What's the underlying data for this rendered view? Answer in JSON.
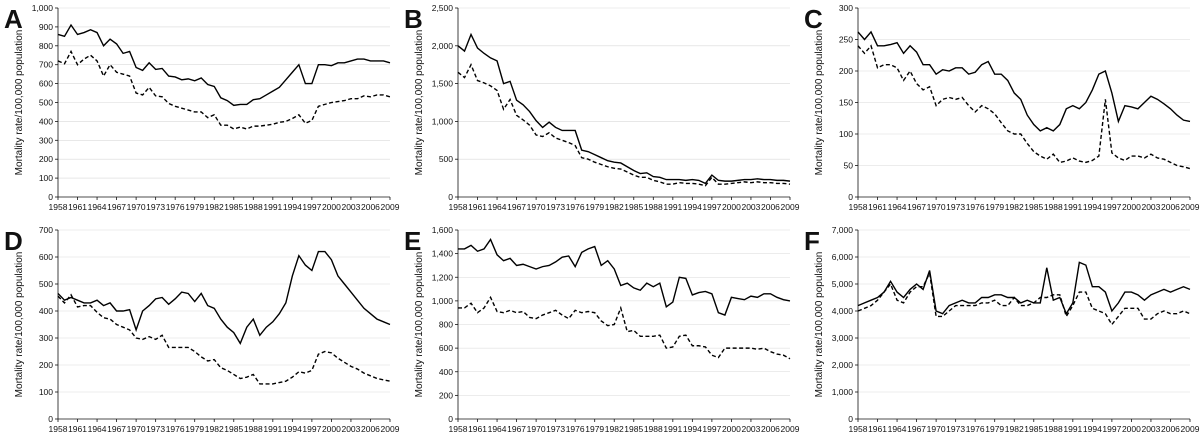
{
  "chart_data": [
    {
      "type": "line",
      "panel": "A",
      "ylabel": "Mortality rate/100,000 population",
      "ylim": [
        0,
        1000
      ],
      "yticks": [
        0,
        100,
        200,
        300,
        400,
        500,
        600,
        700,
        800,
        900,
        1000
      ],
      "ytick_labels": [
        "0",
        "100",
        "200",
        "300",
        "400",
        "500",
        "600",
        "700",
        "800",
        "900",
        "1,000"
      ],
      "xlim": [
        1958,
        2009
      ],
      "xticks": [
        1958,
        1961,
        1964,
        1967,
        1970,
        1973,
        1976,
        1979,
        1982,
        1985,
        1988,
        1991,
        1994,
        1997,
        2000,
        2003,
        2006,
        2009
      ],
      "grid": true,
      "series": [
        {
          "style": "solid",
          "values": [
            860,
            850,
            910,
            860,
            870,
            885,
            870,
            800,
            835,
            810,
            760,
            770,
            685,
            670,
            710,
            675,
            680,
            640,
            635,
            620,
            625,
            615,
            630,
            595,
            585,
            525,
            510,
            485,
            490,
            490,
            515,
            520,
            540,
            560,
            580,
            620,
            660,
            700,
            600,
            600,
            700,
            700,
            695,
            710,
            710,
            720,
            730,
            730,
            720,
            720,
            720,
            710
          ]
        },
        {
          "style": "dashed",
          "values": [
            720,
            705,
            770,
            700,
            730,
            750,
            720,
            640,
            700,
            660,
            650,
            640,
            550,
            540,
            580,
            535,
            530,
            495,
            480,
            470,
            460,
            450,
            450,
            420,
            435,
            380,
            380,
            360,
            370,
            360,
            375,
            375,
            380,
            385,
            395,
            400,
            415,
            435,
            390,
            405,
            480,
            490,
            500,
            505,
            510,
            520,
            520,
            535,
            530,
            540,
            540,
            530
          ]
        }
      ]
    },
    {
      "type": "line",
      "panel": "B",
      "ylabel": "Mortality rate/100,000 population",
      "ylim": [
        0,
        2500
      ],
      "yticks": [
        0,
        500,
        1000,
        1500,
        2000,
        2500
      ],
      "ytick_labels": [
        "0",
        "500",
        "1,000",
        "1,500",
        "2,000",
        "2,500"
      ],
      "xlim": [
        1958,
        2009
      ],
      "xticks": [
        1958,
        1961,
        1964,
        1967,
        1970,
        1973,
        1976,
        1979,
        1982,
        1985,
        1988,
        1991,
        1994,
        1997,
        2000,
        2003,
        2006,
        2009
      ],
      "grid": true,
      "series": [
        {
          "style": "solid",
          "values": [
            2000,
            1930,
            2150,
            1970,
            1900,
            1840,
            1800,
            1500,
            1530,
            1280,
            1220,
            1130,
            1010,
            920,
            990,
            920,
            880,
            880,
            880,
            620,
            600,
            560,
            520,
            480,
            460,
            450,
            400,
            350,
            310,
            320,
            270,
            260,
            230,
            230,
            230,
            220,
            230,
            220,
            180,
            290,
            220,
            210,
            210,
            220,
            230,
            230,
            240,
            230,
            230,
            220,
            220,
            210
          ]
        },
        {
          "style": "dashed",
          "values": [
            1650,
            1580,
            1750,
            1540,
            1510,
            1470,
            1410,
            1160,
            1290,
            1080,
            1020,
            950,
            820,
            800,
            850,
            780,
            750,
            720,
            680,
            520,
            500,
            460,
            430,
            400,
            380,
            370,
            330,
            290,
            260,
            260,
            220,
            200,
            170,
            170,
            190,
            180,
            180,
            170,
            150,
            260,
            170,
            170,
            180,
            190,
            200,
            190,
            200,
            190,
            190,
            180,
            180,
            170
          ]
        }
      ]
    },
    {
      "type": "line",
      "panel": "C",
      "ylabel": "Mortality rate/100,000 population",
      "ylim": [
        0,
        300
      ],
      "yticks": [
        0,
        50,
        100,
        150,
        200,
        250,
        300
      ],
      "ytick_labels": [
        "0",
        "50",
        "100",
        "150",
        "200",
        "250",
        "300"
      ],
      "xlim": [
        1958,
        2009
      ],
      "xticks": [
        1958,
        1961,
        1964,
        1967,
        1970,
        1973,
        1976,
        1979,
        1982,
        1985,
        1988,
        1991,
        1994,
        1997,
        2000,
        2003,
        2006,
        2009
      ],
      "grid": true,
      "series": [
        {
          "style": "solid",
          "values": [
            262,
            250,
            262,
            240,
            240,
            242,
            245,
            228,
            240,
            230,
            210,
            210,
            195,
            202,
            200,
            205,
            205,
            195,
            198,
            210,
            215,
            195,
            195,
            185,
            165,
            155,
            130,
            115,
            105,
            110,
            105,
            115,
            140,
            145,
            140,
            150,
            170,
            195,
            200,
            165,
            120,
            145,
            143,
            140,
            150,
            160,
            155,
            148,
            140,
            130,
            122,
            120
          ]
        },
        {
          "style": "dashed",
          "values": [
            240,
            228,
            240,
            205,
            210,
            210,
            205,
            185,
            200,
            180,
            170,
            175,
            145,
            155,
            158,
            155,
            158,
            145,
            135,
            145,
            140,
            132,
            118,
            105,
            100,
            100,
            85,
            72,
            65,
            60,
            68,
            55,
            57,
            62,
            57,
            55,
            58,
            65,
            155,
            70,
            62,
            58,
            65,
            65,
            62,
            68,
            62,
            60,
            55,
            50,
            48,
            45
          ]
        }
      ]
    },
    {
      "type": "line",
      "panel": "D",
      "ylabel": "Mortality rate/100,000 population",
      "ylim": [
        0,
        700
      ],
      "yticks": [
        0,
        100,
        200,
        300,
        400,
        500,
        600,
        700
      ],
      "ytick_labels": [
        "0",
        "100",
        "200",
        "300",
        "400",
        "500",
        "600",
        "700"
      ],
      "xlim": [
        1958,
        2009
      ],
      "xticks": [
        1958,
        1961,
        1964,
        1967,
        1970,
        1973,
        1976,
        1979,
        1982,
        1985,
        1988,
        1991,
        1994,
        1997,
        2000,
        2003,
        2006,
        2009
      ],
      "grid": true,
      "series": [
        {
          "style": "solid",
          "values": [
            465,
            440,
            450,
            440,
            430,
            430,
            440,
            420,
            430,
            400,
            400,
            405,
            330,
            400,
            420,
            445,
            450,
            425,
            445,
            470,
            465,
            435,
            465,
            420,
            410,
            370,
            340,
            320,
            280,
            340,
            370,
            310,
            340,
            360,
            390,
            430,
            530,
            605,
            570,
            550,
            620,
            620,
            590,
            530,
            500,
            470,
            440,
            410,
            390,
            370,
            360,
            350
          ]
        },
        {
          "style": "dashed",
          "values": [
            455,
            430,
            460,
            415,
            420,
            420,
            395,
            375,
            370,
            350,
            340,
            330,
            300,
            295,
            305,
            295,
            310,
            265,
            265,
            265,
            265,
            250,
            230,
            215,
            220,
            190,
            180,
            165,
            150,
            155,
            165,
            130,
            130,
            130,
            135,
            140,
            155,
            175,
            170,
            180,
            240,
            250,
            245,
            225,
            210,
            195,
            185,
            170,
            160,
            150,
            145,
            140
          ]
        }
      ]
    },
    {
      "type": "line",
      "panel": "E",
      "ylabel": "Mortality rate/100,000 population",
      "ylim": [
        0,
        1600
      ],
      "yticks": [
        0,
        200,
        400,
        600,
        800,
        1000,
        1200,
        1400,
        1600
      ],
      "ytick_labels": [
        "0",
        "200",
        "400",
        "600",
        "800",
        "1,000",
        "1,200",
        "1,400",
        "1,600"
      ],
      "xlim": [
        1958,
        2009
      ],
      "xticks": [
        1958,
        1961,
        1964,
        1967,
        1970,
        1973,
        1976,
        1979,
        1982,
        1985,
        1988,
        1991,
        1994,
        1997,
        2000,
        2003,
        2006,
        2009
      ],
      "grid": true,
      "series": [
        {
          "style": "solid",
          "values": [
            1440,
            1440,
            1470,
            1420,
            1440,
            1520,
            1390,
            1340,
            1360,
            1300,
            1310,
            1290,
            1270,
            1290,
            1300,
            1330,
            1370,
            1380,
            1290,
            1410,
            1440,
            1460,
            1300,
            1340,
            1270,
            1130,
            1150,
            1110,
            1090,
            1150,
            1120,
            1150,
            950,
            990,
            1200,
            1190,
            1050,
            1070,
            1080,
            1060,
            900,
            880,
            1030,
            1020,
            1010,
            1040,
            1030,
            1060,
            1060,
            1030,
            1010,
            1000
          ]
        },
        {
          "style": "dashed",
          "values": [
            940,
            940,
            980,
            900,
            940,
            1030,
            910,
            900,
            920,
            900,
            910,
            860,
            850,
            880,
            900,
            920,
            880,
            850,
            920,
            900,
            910,
            900,
            830,
            790,
            800,
            940,
            740,
            750,
            700,
            700,
            700,
            710,
            600,
            610,
            700,
            710,
            620,
            620,
            610,
            540,
            520,
            600,
            600,
            600,
            600,
            600,
            590,
            600,
            570,
            550,
            540,
            510
          ]
        }
      ]
    },
    {
      "type": "line",
      "panel": "F",
      "ylabel": "Mortality rate/100,000 population",
      "ylim": [
        0,
        7000
      ],
      "yticks": [
        0,
        1000,
        2000,
        3000,
        4000,
        5000,
        6000,
        7000
      ],
      "ytick_labels": [
        "0",
        "1,000",
        "2,000",
        "3,000",
        "4,000",
        "5,000",
        "6,000",
        "7,000"
      ],
      "xlim": [
        1958,
        2009
      ],
      "xticks": [
        1958,
        1961,
        1964,
        1967,
        1970,
        1973,
        1976,
        1979,
        1982,
        1985,
        1988,
        1991,
        1994,
        1997,
        2000,
        2003,
        2006,
        2009
      ],
      "grid": true,
      "series": [
        {
          "style": "solid",
          "values": [
            4200,
            4300,
            4400,
            4500,
            4700,
            5100,
            4700,
            4500,
            4800,
            5000,
            4800,
            5500,
            4000,
            3900,
            4200,
            4300,
            4400,
            4300,
            4300,
            4500,
            4500,
            4600,
            4600,
            4500,
            4500,
            4300,
            4400,
            4300,
            4300,
            5600,
            4400,
            4500,
            3900,
            4300,
            5800,
            5700,
            4900,
            4900,
            4700,
            4000,
            4300,
            4700,
            4700,
            4600,
            4400,
            4600,
            4700,
            4800,
            4700,
            4800,
            4900,
            4800
          ]
        },
        {
          "style": "dashed",
          "values": [
            4000,
            4100,
            4200,
            4400,
            4700,
            5000,
            4400,
            4300,
            4700,
            4900,
            4900,
            5400,
            3800,
            3800,
            4000,
            4200,
            4200,
            4200,
            4200,
            4300,
            4300,
            4400,
            4200,
            4200,
            4500,
            4200,
            4200,
            4300,
            4500,
            4500,
            4600,
            4600,
            3800,
            4200,
            4700,
            4700,
            4100,
            4000,
            3900,
            3500,
            3800,
            4100,
            4100,
            4100,
            3700,
            3700,
            3900,
            4000,
            3900,
            3900,
            4000,
            3900
          ]
        }
      ]
    }
  ]
}
